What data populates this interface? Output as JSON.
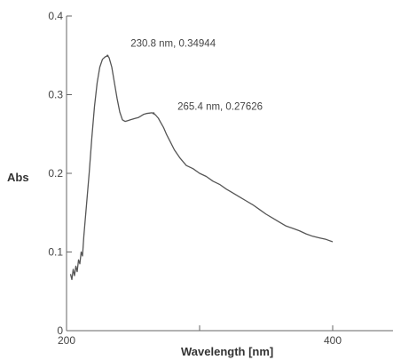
{
  "chart_data": {
    "type": "line",
    "title": "",
    "xlabel": "Wavelength [nm]",
    "ylabel": "Abs",
    "xlim": [
      200,
      450
    ],
    "ylim": [
      0,
      0.4
    ],
    "grid": false,
    "x_ticks": [
      200,
      300,
      400
    ],
    "x_tick_labels": [
      "200",
      "",
      "400"
    ],
    "y_ticks": [
      0,
      0.1,
      0.2,
      0.3,
      0.4
    ],
    "y_tick_labels": [
      "0",
      "0.1",
      "0.2",
      "0.3",
      "0.4"
    ],
    "series": [
      {
        "x": [
          203,
          204,
          205,
          206,
          207,
          208,
          209,
          210,
          211,
          212,
          213,
          215,
          217,
          219,
          221,
          223,
          225,
          227,
          229,
          230.8,
          232,
          234,
          236,
          238,
          240,
          242,
          244,
          246,
          248,
          250,
          252,
          254,
          256,
          258,
          260,
          262,
          264,
          265.4,
          267,
          269,
          271,
          273,
          275,
          278,
          281,
          285,
          290,
          295,
          300,
          305,
          310,
          315,
          320,
          325,
          330,
          335,
          340,
          345,
          350,
          355,
          360,
          365,
          370,
          375,
          380,
          385,
          390,
          395,
          400
        ],
        "y": [
          0.072,
          0.065,
          0.078,
          0.07,
          0.082,
          0.075,
          0.09,
          0.085,
          0.1,
          0.095,
          0.12,
          0.16,
          0.2,
          0.245,
          0.285,
          0.315,
          0.335,
          0.345,
          0.348,
          0.34944,
          0.347,
          0.335,
          0.315,
          0.295,
          0.278,
          0.268,
          0.266,
          0.267,
          0.268,
          0.269,
          0.27,
          0.271,
          0.273,
          0.275,
          0.276,
          0.2765,
          0.277,
          0.27626,
          0.274,
          0.27,
          0.264,
          0.258,
          0.25,
          0.24,
          0.23,
          0.22,
          0.21,
          0.206,
          0.2,
          0.196,
          0.19,
          0.186,
          0.18,
          0.175,
          0.17,
          0.165,
          0.16,
          0.154,
          0.148,
          0.143,
          0.138,
          0.133,
          0.13,
          0.127,
          0.123,
          0.12,
          0.118,
          0.116,
          0.113
        ]
      }
    ],
    "annotations": [
      {
        "x": 230.8,
        "y": 0.34944,
        "text": "230.8 nm, 0.34944"
      },
      {
        "x": 265.4,
        "y": 0.27626,
        "text": "265.4 nm, 0.27626"
      }
    ]
  }
}
